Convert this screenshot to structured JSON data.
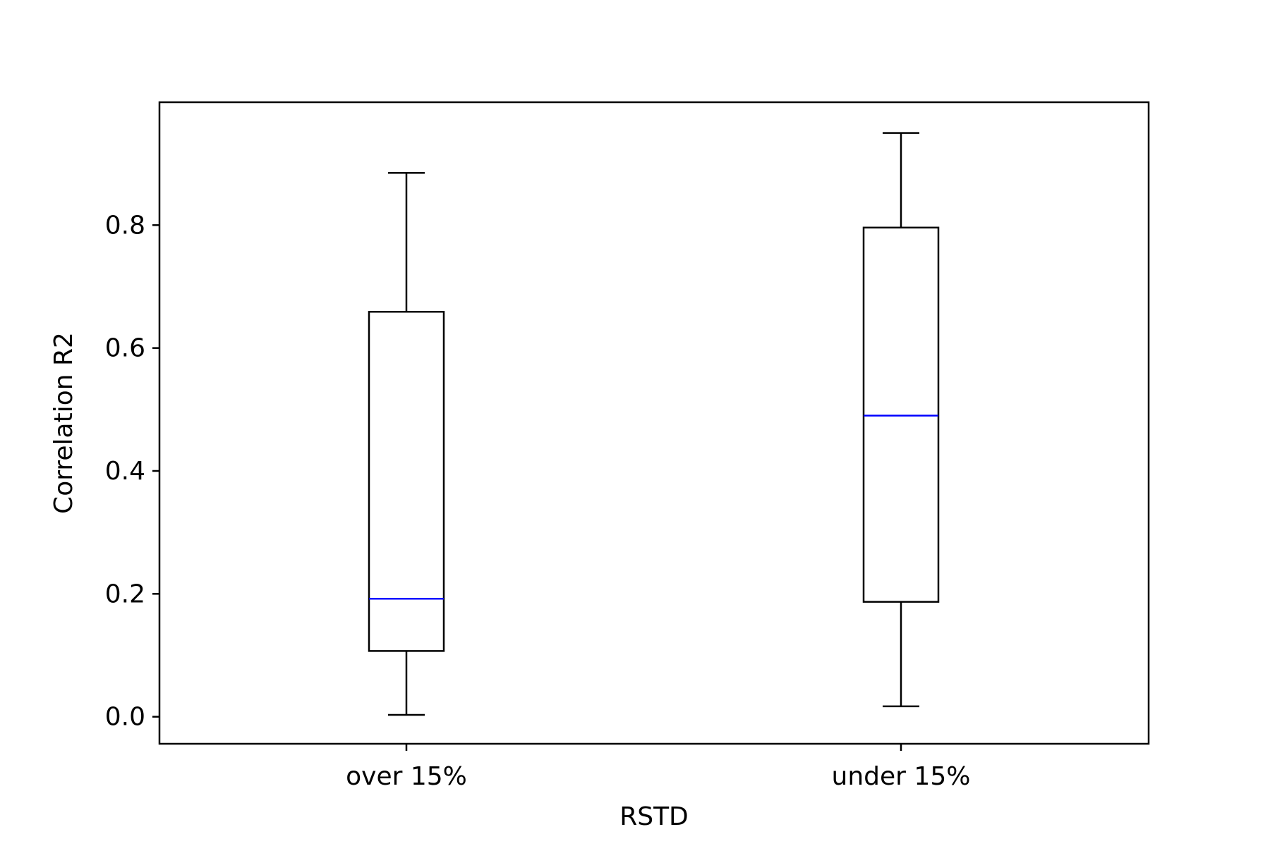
{
  "chart_data": {
    "type": "box",
    "title": "",
    "xlabel": "RSTD",
    "ylabel": "Correlation R2",
    "ylim": [
      -0.044,
      1.0
    ],
    "yticks": [
      0.0,
      0.2,
      0.4,
      0.6,
      0.8
    ],
    "ytick_labels": [
      "0.0",
      "0.2",
      "0.4",
      "0.6",
      "0.8"
    ],
    "grid": false,
    "categories": [
      "over 15%",
      "under 15%"
    ],
    "boxes": [
      {
        "category": "over 15%",
        "whisker_low": 0.003,
        "q1": 0.107,
        "median": 0.192,
        "q3": 0.659,
        "whisker_high": 0.885
      },
      {
        "category": "under 15%",
        "whisker_low": 0.017,
        "q1": 0.187,
        "median": 0.49,
        "q3": 0.796,
        "whisker_high": 0.95
      }
    ],
    "colors": {
      "box": "#000000",
      "median": "#0000ff",
      "axes": "#000000"
    }
  }
}
